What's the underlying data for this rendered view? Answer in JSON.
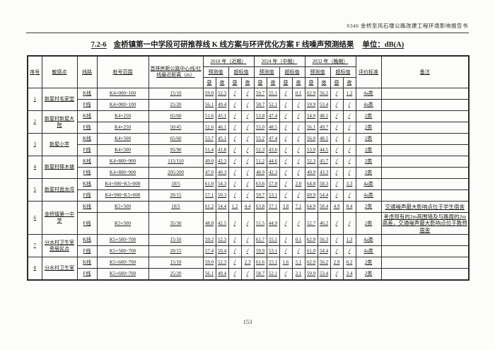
{
  "page": {
    "header_right": "S346 金桥至风石堰公路改建工程环境影响报告书",
    "page_number": "153"
  },
  "table": {
    "title_number": "7.2-6",
    "title_text": "金桥镇第一中学段可研推荐线 K 线方案与环评优化方案 F 线噪声预测结果",
    "unit_label": "单位：dB(A)",
    "headers": {
      "seq": "序号",
      "sensitive_point": "敏感点",
      "line": "线路",
      "stake_range": "桩号范围",
      "distance": "首排房距公路中心线/红线最近距离（m）",
      "years": [
        "2018 年（近期）",
        "2024 年（中期）",
        "2032 年（晚期）"
      ],
      "predicted": "预测值",
      "exceed": "超标值",
      "day": "昼",
      "night": "夜",
      "standard": "评价标准",
      "remark": "备注"
    },
    "groups": [
      {
        "seq": "1",
        "name": "新屋村毛家堂",
        "rows": [
          {
            "line": "K线",
            "stake": "K4+000~100",
            "distance": "15/10",
            "values": [
              "59.0",
              "52.3",
              "/",
              "/",
              "59.7",
              "55.1",
              "/",
              "0.1",
              "62.9",
              "56.2",
              "/",
              "1.2"
            ],
            "standard": "4a类",
            "remark": ""
          },
          {
            "line": "F线",
            "stake": "K4+000~100",
            "distance": "25/20",
            "values": [
              "56.1",
              "49.4",
              "/",
              "/",
              "58.7",
              "52.1",
              "/",
              "/",
              "59.9",
              "53.4",
              "/",
              "/"
            ],
            "standard": "4a类",
            "remark": ""
          }
        ]
      },
      {
        "seq": "2",
        "name": "新屋村新屋大院",
        "rows": [
          {
            "line": "K线",
            "stake": "K4+250",
            "distance": "65/60",
            "values": [
              "51.6",
              "45.1",
              "/",
              "/",
              "53.8",
              "47.4",
              "/",
              "/",
              "54.9",
              "48.5",
              "/",
              "/"
            ],
            "standard": "2类",
            "remark": ""
          },
          {
            "line": "F线",
            "stake": "K4+250",
            "distance": "50/45",
            "values": [
              "52.6",
              "46.1",
              "/",
              "/",
              "55.0",
              "48.5",
              "/",
              "/",
              "56.1",
              "49.7",
              "/",
              "/"
            ],
            "standard": "2类",
            "remark": ""
          }
        ]
      },
      {
        "seq": "3",
        "name": "新屋小学",
        "rows": [
          {
            "line": "K线",
            "stake": "K4+500",
            "distance": "65/60",
            "values": [
              "53.7",
              "45.1",
              "/",
              "/",
              "55.2",
              "47.4",
              "/",
              "/",
              "56.0",
              "48.5",
              "/",
              "/"
            ],
            "standard": "2类",
            "remark": ""
          },
          {
            "line": "F线",
            "stake": "K4+500",
            "distance": "95/90",
            "values": [
              "51.4",
              "41.8",
              "/",
              "/",
              "52.3",
              "43.6",
              "/",
              "/",
              "53.9",
              "44.5",
              "/",
              "/"
            ],
            "standard": "2类",
            "remark": ""
          }
        ]
      },
      {
        "seq": "4",
        "name": "新屋村樟木塘",
        "rows": [
          {
            "line": "K线",
            "stake": "K4+800~900",
            "distance": "115/110",
            "values": [
              "49.0",
              "42.3",
              "/",
              "/",
              "51.2",
              "44.6",
              "/",
              "/",
              "52.3",
              "45.7",
              "/",
              "/"
            ],
            "standard": "2类",
            "remark": ""
          },
          {
            "line": "F线",
            "stake": "K4+800~900",
            "distance": "205/200",
            "values": [
              "47.0",
              "40.3",
              "/",
              "/",
              "48.9",
              "42.3",
              "/",
              "/",
              "49.9",
              "43.3",
              "/",
              "/"
            ],
            "standard": "2类",
            "remark": ""
          }
        ]
      },
      {
        "seq": "5",
        "name": "新屋村盘龙湾",
        "rows": [
          {
            "line": "K线",
            "stake": "K4+900~K5+000",
            "distance": "10/5",
            "values": [
              "61.0",
              "54.3",
              "/",
              "/",
              "63.6",
              "57.0",
              "/",
              "2.0",
              "64.8",
              "58.3",
              "/",
              "3.3"
            ],
            "standard": "4a类",
            "remark": ""
          },
          {
            "line": "F线",
            "stake": "K4+900~K5+000",
            "distance": "20/15",
            "values": [
              "57.1",
              "50.3",
              "/",
              "/",
              "59.7",
              "53.1",
              "/",
              "/",
              "60.9",
              "54.4",
              "/",
              "/"
            ],
            "standard": "4a类",
            "remark": ""
          }
        ]
      },
      {
        "seq": "6",
        "name": "金桥镇第一中学",
        "rows": [
          {
            "line": "K线",
            "stake": "K5+500",
            "distance": "10/5",
            "values": [
              "61.2",
              "54.4",
              "1.2",
              "4.4",
              "63.8",
              "57.1",
              "3.8",
              "7.1",
              "64.9",
              "58.4",
              "4.9",
              "8.4"
            ],
            "standard": "2类",
            "remark": "交通噪声最大影响点位于学生宿舍"
          },
          {
            "line": "F线",
            "stake": "K5+500",
            "distance": "35/30",
            "values": [
              "48.8",
              "42.5",
              "/",
              "/",
              "51.5",
              "44.9",
              "/",
              "/",
              "52.7",
              "46.2",
              "/",
              "/"
            ],
            "standard": "2类",
            "remark": "考虑现有的2m高围墙及与路面的2m高差，交通噪声最大影响点位于教师宿舍"
          }
        ]
      },
      {
        "seq": "7",
        "name": "分水村卫生室旁居民点",
        "rows": [
          {
            "line": "K线",
            "stake": "K5+500~700",
            "distance": "15/10",
            "values": [
              "59.2",
              "52.3",
              "/",
              "/",
              "61.7",
              "55.1",
              "/",
              "0.1",
              "62.9",
              "56.3",
              "/",
              "1.3"
            ],
            "standard": "4a类",
            "remark": ""
          },
          {
            "line": "F线",
            "stake": "K5+500~700",
            "distance": "20/15",
            "values": [
              "57.4",
              "50.4",
              "/",
              "/",
              "59.9",
              "53.1",
              "/",
              "/",
              "61.0",
              "54.4",
              "/",
              "/"
            ],
            "standard": "4a类",
            "remark": ""
          }
        ]
      },
      {
        "seq": "8",
        "name": "分水村卫生室",
        "rows": [
          {
            "line": "K线",
            "stake": "K5+600~700",
            "distance": "15/10",
            "values": [
              "59.0",
              "52.3",
              "/",
              "2.3",
              "61.6",
              "55.1",
              "1.6",
              "5.1",
              "62.9",
              "56.2",
              "2.9",
              "6.2"
            ],
            "standard": "2类",
            "remark": ""
          },
          {
            "line": "F线",
            "stake": "K5+600~700",
            "distance": "25/20",
            "values": [
              "56.1",
              "49.4",
              "/",
              "/",
              "58.7",
              "52.1",
              "/",
              "2.1",
              "59.9",
              "53.4",
              "/",
              "3.4"
            ],
            "standard": "2类",
            "remark": ""
          }
        ]
      }
    ]
  }
}
